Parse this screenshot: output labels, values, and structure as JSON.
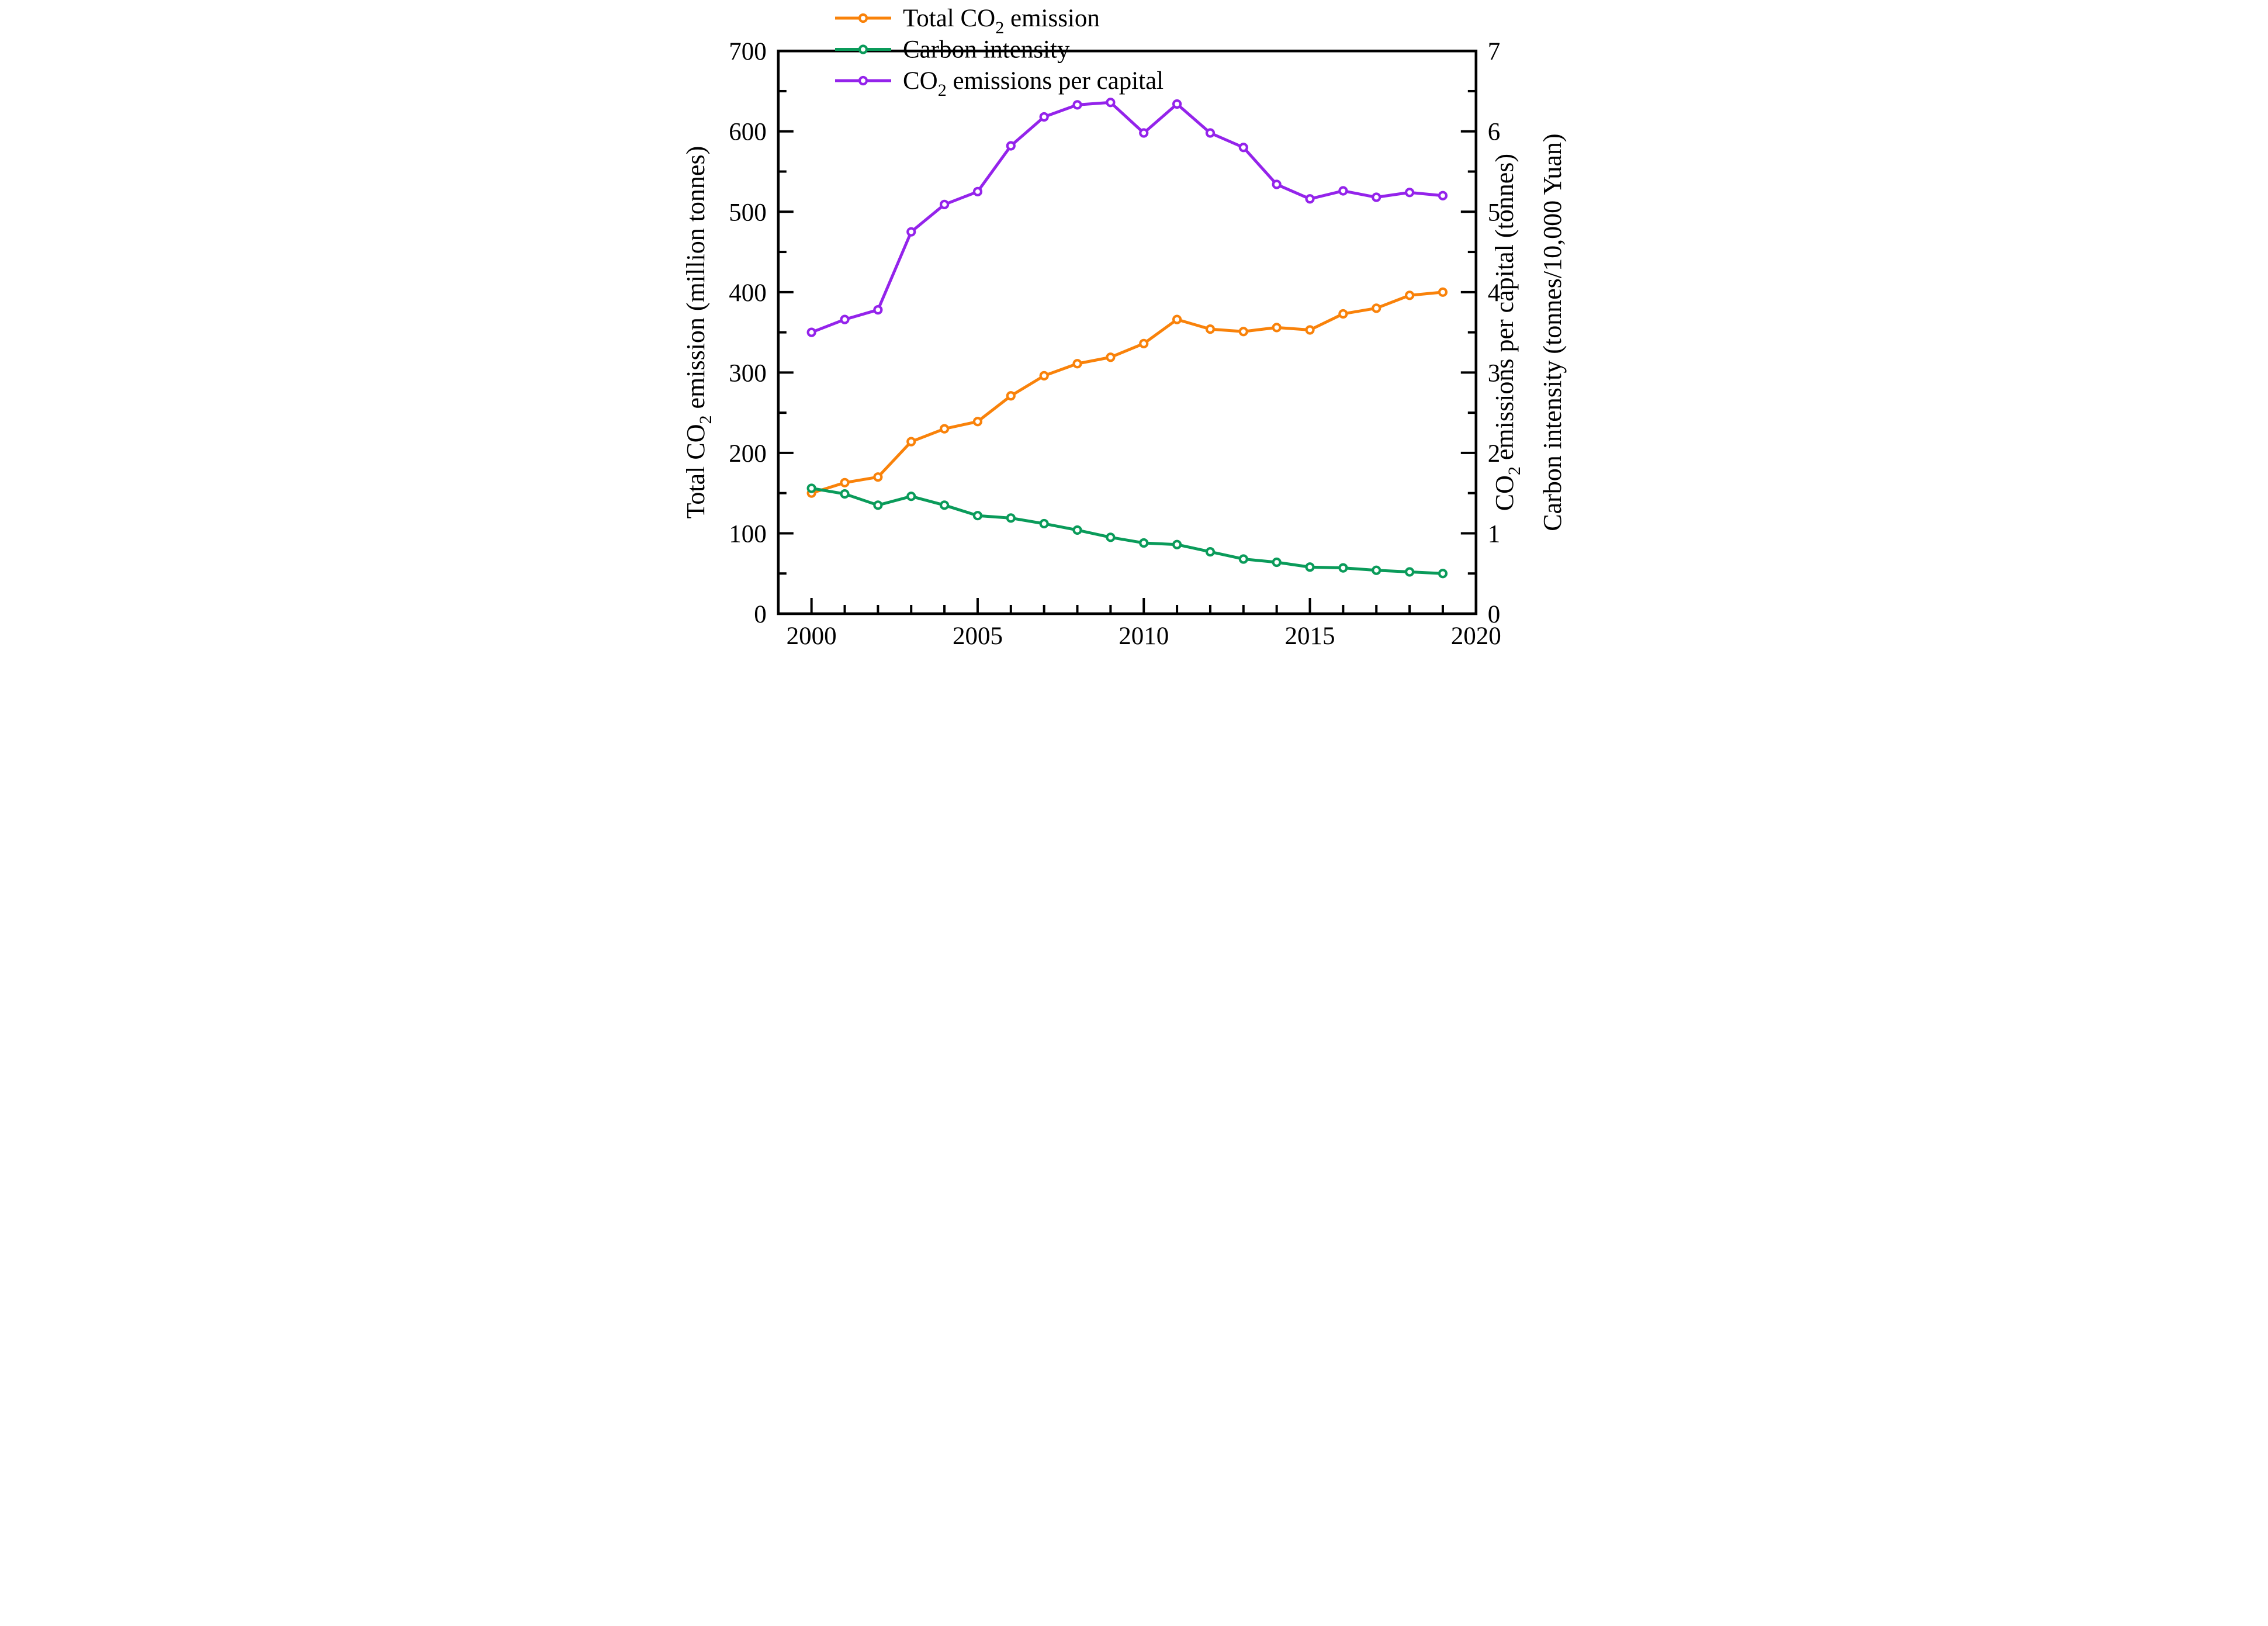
{
  "background": "#ffffff",
  "chart_data": {
    "type": "line",
    "title": "",
    "legend_position": "top-left",
    "grid": false,
    "x": [
      2000,
      2001,
      2002,
      2003,
      2004,
      2005,
      2006,
      2007,
      2008,
      2009,
      2010,
      2011,
      2012,
      2013,
      2014,
      2015,
      2016,
      2017,
      2018,
      2019
    ],
    "x_axis": {
      "range": [
        1999,
        2020
      ],
      "major_ticks": [
        2000,
        2005,
        2010,
        2015,
        2020
      ],
      "tick_labels": [
        "2000",
        "2005",
        "2010",
        "2015",
        "2020"
      ],
      "minor_tick_every_years": 1
    },
    "left_axis": {
      "title_segments": [
        {
          "t": "Total CO"
        },
        {
          "t": "2",
          "sub": true
        },
        {
          "t": " emission (million tonnes)"
        }
      ],
      "range": [
        0,
        700
      ],
      "major_step": 100,
      "minor_step": 50,
      "tick_labels": [
        "0",
        "100",
        "200",
        "300",
        "400",
        "500",
        "600",
        "700"
      ]
    },
    "right_axis": {
      "title_lines": [
        [
          {
            "t": "CO"
          },
          {
            "t": "2",
            "sub": true
          },
          {
            "t": " emissions per capital (tonnes)"
          }
        ],
        [
          {
            "t": "Carbon intensity (tonnes/10,000 Yuan)"
          }
        ]
      ],
      "range": [
        0,
        7
      ],
      "major_step": 1,
      "minor_step": 0.5,
      "tick_labels": [
        "0",
        "1",
        "2",
        "3",
        "4",
        "5",
        "6",
        "7"
      ]
    },
    "series": [
      {
        "id": "total-co2-emission",
        "label_segments": [
          {
            "t": "Total CO"
          },
          {
            "t": "2",
            "sub": true
          },
          {
            "t": " emission"
          }
        ],
        "color": "#F9820A",
        "axis": "left",
        "marker": "open-circle",
        "values": [
          150,
          163,
          170,
          214,
          230,
          239,
          271,
          296,
          311,
          319,
          336,
          366,
          354,
          351,
          356,
          353,
          373,
          380,
          396,
          400
        ]
      },
      {
        "id": "carbon-intensity",
        "label_segments": [
          {
            "t": "Carbon intensity"
          }
        ],
        "color": "#0A9B5A",
        "axis": "right",
        "marker": "open-circle",
        "values": [
          1.56,
          1.49,
          1.35,
          1.46,
          1.35,
          1.22,
          1.19,
          1.12,
          1.04,
          0.95,
          0.88,
          0.86,
          0.77,
          0.68,
          0.64,
          0.58,
          0.57,
          0.54,
          0.52,
          0.5
        ]
      },
      {
        "id": "co2-emissions-per-capital",
        "label_segments": [
          {
            "t": "CO"
          },
          {
            "t": "2",
            "sub": true
          },
          {
            "t": " emissions per capital"
          }
        ],
        "color": "#9423EB",
        "axis": "right",
        "marker": "open-circle",
        "values": [
          3.5,
          3.66,
          3.78,
          4.75,
          5.09,
          5.25,
          5.82,
          6.18,
          6.33,
          6.36,
          5.98,
          6.34,
          5.98,
          5.8,
          5.34,
          5.16,
          5.26,
          5.18,
          5.24,
          5.2
        ]
      }
    ]
  }
}
